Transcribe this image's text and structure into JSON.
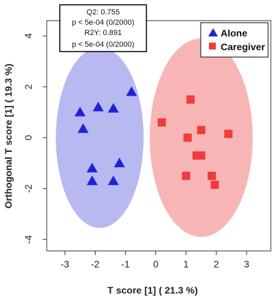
{
  "chart_data": {
    "type": "scatter",
    "title": "",
    "xlabel": "T score [1] ( 21.3 %)",
    "ylabel": "Orthogonal T score [1] ( 19.3 %)",
    "xlim": [
      -3.6,
      3.8
    ],
    "ylim": [
      -4.45,
      4.6
    ],
    "x_ticks": [
      -3,
      -2,
      -1,
      0,
      1,
      2,
      3
    ],
    "y_ticks": [
      -4,
      -2,
      0,
      2,
      4
    ],
    "grid": false,
    "legend_position": "top-right",
    "stats": [
      "Q2: 0.755",
      "p < 5e-04 (0/2000)",
      "R2Y: 0.891",
      "p < 5e-04 (0/2000)"
    ],
    "series": [
      {
        "name": "Alone",
        "marker": "triangle",
        "color": "#1f22d6",
        "ellipse_fill": "#b9b9f2",
        "ellipse": {
          "cx": -1.85,
          "cy": 0.0,
          "rx": 1.45,
          "ry": 3.55
        },
        "points": [
          {
            "x": -0.8,
            "y": 1.8
          },
          {
            "x": -1.9,
            "y": 1.2
          },
          {
            "x": -1.4,
            "y": 1.15
          },
          {
            "x": -2.5,
            "y": 1.0
          },
          {
            "x": -2.4,
            "y": 0.35
          },
          {
            "x": -1.2,
            "y": -1.0
          },
          {
            "x": -2.1,
            "y": -1.2
          },
          {
            "x": -2.1,
            "y": -1.7
          },
          {
            "x": -1.4,
            "y": -1.7
          }
        ]
      },
      {
        "name": "Caregiver",
        "marker": "square",
        "color": "#f03c3c",
        "ellipse_fill": "#f8b5b5",
        "ellipse": {
          "cx": 1.5,
          "cy": 0.0,
          "rx": 1.7,
          "ry": 3.9
        },
        "points": [
          {
            "x": 1.15,
            "y": 1.5
          },
          {
            "x": 0.2,
            "y": 0.6
          },
          {
            "x": 1.5,
            "y": 0.3
          },
          {
            "x": 2.4,
            "y": 0.15
          },
          {
            "x": 1.05,
            "y": 0.0
          },
          {
            "x": 1.35,
            "y": -0.7
          },
          {
            "x": 1.5,
            "y": -0.7
          },
          {
            "x": 1.0,
            "y": -1.5
          },
          {
            "x": 1.85,
            "y": -1.5
          },
          {
            "x": 1.95,
            "y": -1.85
          }
        ]
      }
    ]
  }
}
